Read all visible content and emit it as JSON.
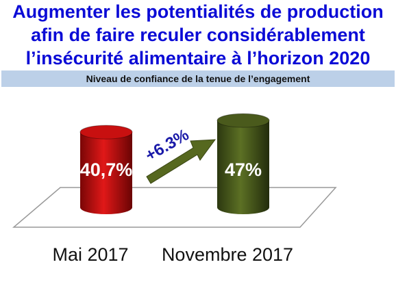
{
  "title_lines": [
    "Augmenter les potentialités de production",
    "afin de  faire reculer considérablement",
    "l’insécurité alimentaire à l’horizon 2020"
  ],
  "subtitle": "Niveau de confiance de la tenue de l’engagement",
  "chart_data": {
    "type": "bar",
    "categories": [
      "Mai 2017",
      "Novembre 2017"
    ],
    "values": [
      40.7,
      47
    ],
    "value_labels": [
      "40,7%",
      "47%"
    ],
    "unit": "%",
    "annotation": "+6.3%",
    "bar_colors": [
      "#c81010",
      "#4a5a1c"
    ],
    "arrow_color": "#56681f",
    "annotation_color": "#1a1aa8"
  }
}
